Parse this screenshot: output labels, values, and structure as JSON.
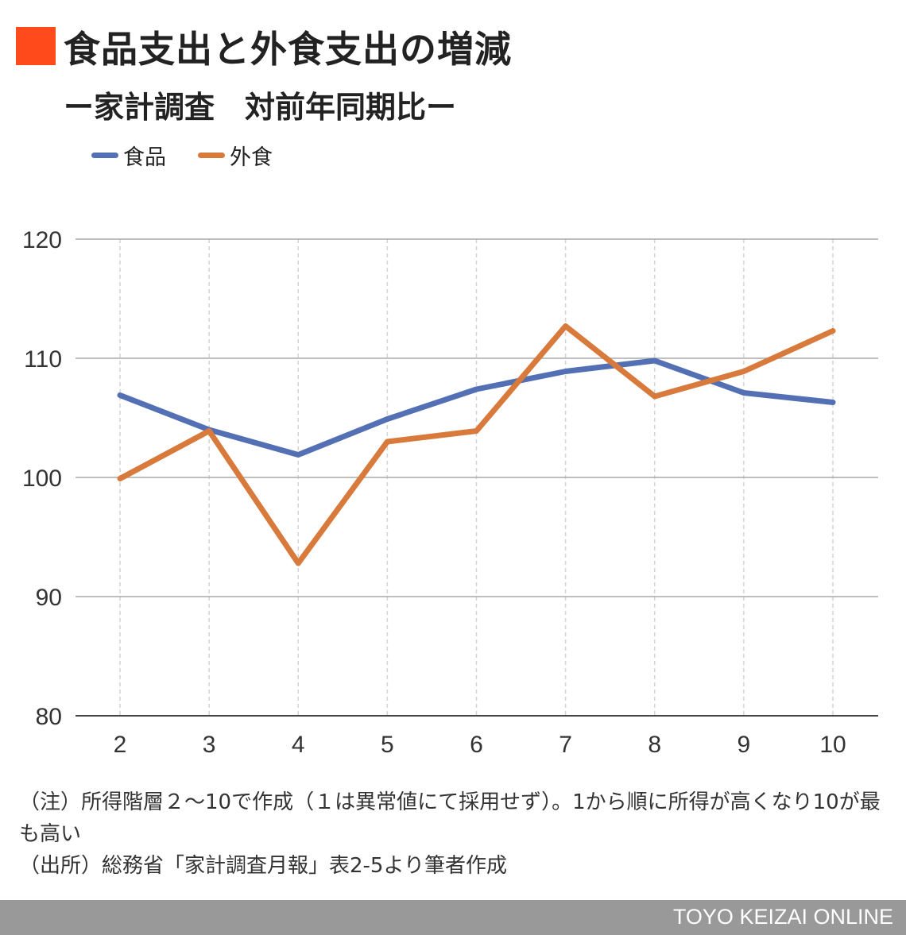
{
  "title": "食品支出と外食支出の増減",
  "subtitle": "ー家計調査　対前年同期比ー",
  "notes": [
    "（注）所得階層２〜10で作成（１は異常値にて採用せず）。1から順に所得が高くなり10が最も高い",
    "（出所）総務省「家計調査月報」表2-5より筆者作成"
  ],
  "footer": "TOYO KEIZAI ONLINE",
  "colors": {
    "accent": "#ff4a1c",
    "food": "#5470b4",
    "dining": "#d87a3c",
    "footer_bg": "#999999"
  },
  "chart_data": {
    "type": "line",
    "title": "食品支出と外食支出の増減",
    "xlabel": "",
    "ylabel": "",
    "categories": [
      "2",
      "3",
      "4",
      "5",
      "6",
      "7",
      "8",
      "9",
      "10"
    ],
    "y_ticks": [
      "80",
      "90",
      "100",
      "110",
      "120"
    ],
    "ylim": [
      80,
      120
    ],
    "grid": true,
    "legend_position": "top-left",
    "series": [
      {
        "name": "食品",
        "values": [
          106.9,
          104.0,
          101.9,
          104.9,
          107.4,
          108.9,
          109.8,
          107.1,
          106.3
        ]
      },
      {
        "name": "外食",
        "values": [
          99.9,
          103.9,
          92.8,
          103.0,
          103.9,
          112.7,
          106.8,
          108.9,
          112.3
        ]
      }
    ]
  }
}
